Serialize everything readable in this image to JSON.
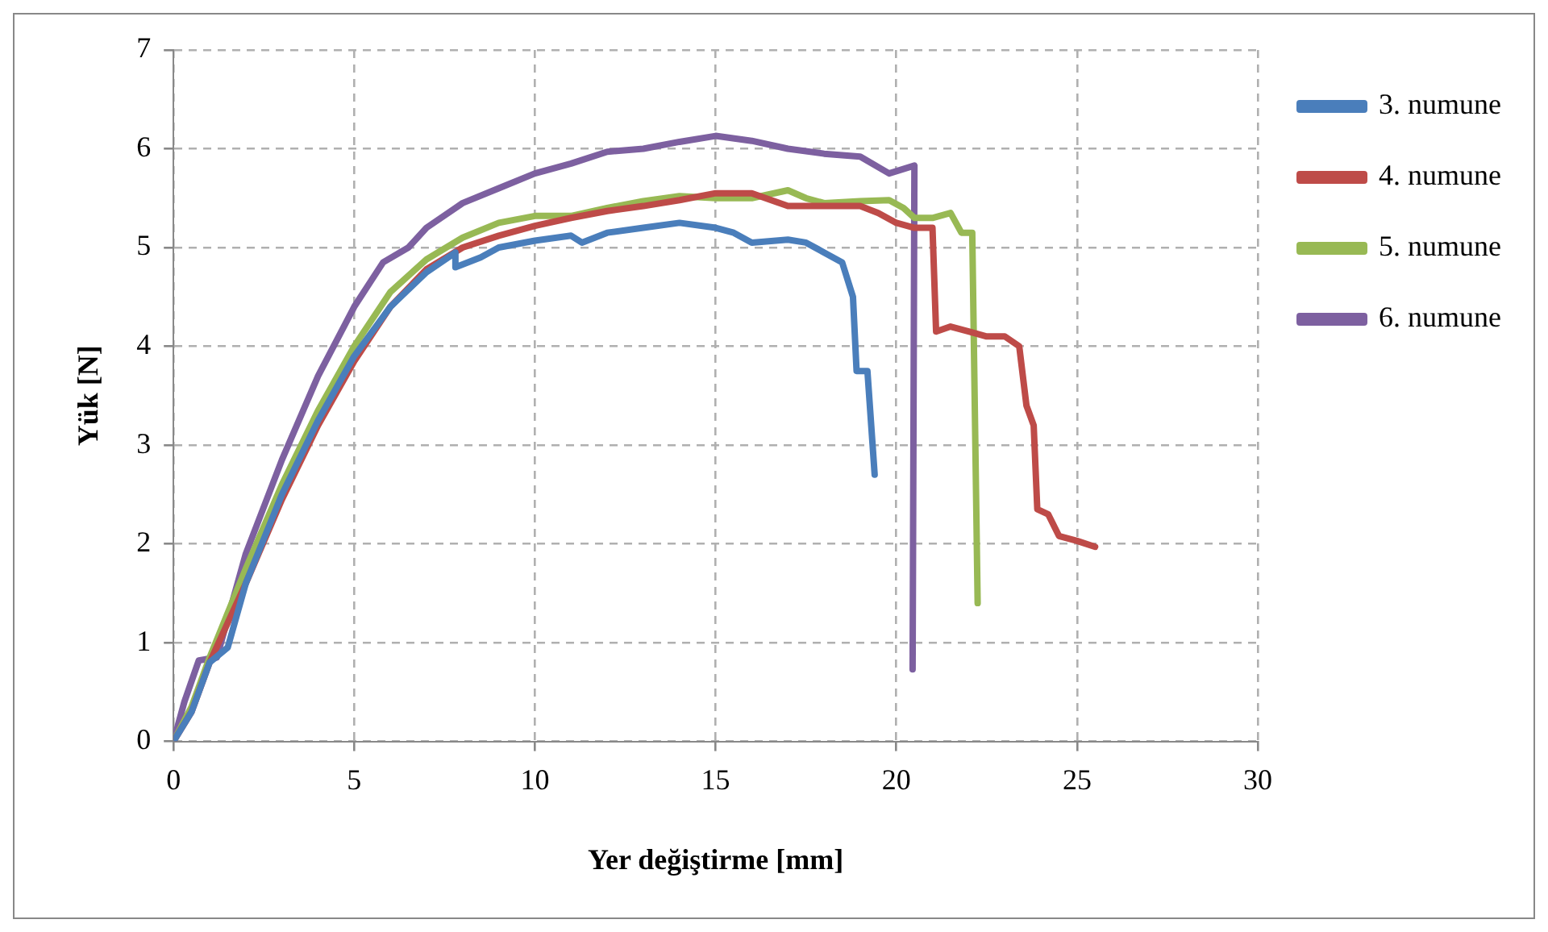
{
  "chart_data": {
    "type": "line",
    "xlabel": "Yer değiştirme [mm]",
    "ylabel": "Yük [N]",
    "xlim": [
      0,
      30
    ],
    "xticks": [
      0,
      5,
      10,
      15,
      20,
      25,
      30
    ],
    "ylim": [
      0,
      7
    ],
    "yticks": [
      0,
      1,
      2,
      3,
      4,
      5,
      6,
      7
    ],
    "grid": true,
    "legend": "right",
    "marker": "none",
    "line_style": "solid",
    "series": [
      {
        "name": "3. numune",
        "color": "#4a7ebb",
        "x": [
          0,
          0.5,
          1,
          1.5,
          2,
          3,
          4,
          5,
          6,
          7,
          7.8,
          7.8,
          8.5,
          9,
          10,
          11,
          11.3,
          12,
          13,
          14,
          15,
          15.5,
          16,
          17,
          17.5,
          18,
          18.5,
          18.8,
          18.9,
          19.2,
          19.4
        ],
        "values": [
          0,
          0.3,
          0.8,
          0.95,
          1.6,
          2.5,
          3.25,
          3.9,
          4.4,
          4.75,
          4.95,
          4.8,
          4.9,
          5.0,
          5.07,
          5.12,
          5.05,
          5.15,
          5.2,
          5.25,
          5.2,
          5.15,
          5.05,
          5.08,
          5.05,
          4.95,
          4.85,
          4.5,
          3.75,
          3.75,
          2.7
        ]
      },
      {
        "name": "4. numune",
        "color": "#be4b48",
        "x": [
          0,
          0.5,
          1,
          2,
          3,
          4,
          5,
          6,
          7,
          8,
          9,
          10,
          11,
          12,
          13,
          14,
          15,
          16,
          17,
          18,
          19,
          19.5,
          20,
          20.5,
          21,
          21.1,
          21.5,
          22,
          22.5,
          23,
          23.4,
          23.6,
          23.8,
          23.9,
          24.2,
          24.5,
          25,
          25.5
        ],
        "values": [
          0,
          0.3,
          0.8,
          1.6,
          2.45,
          3.2,
          3.85,
          4.4,
          4.78,
          5.0,
          5.12,
          5.22,
          5.3,
          5.37,
          5.42,
          5.48,
          5.55,
          5.55,
          5.42,
          5.42,
          5.42,
          5.35,
          5.25,
          5.2,
          5.2,
          4.15,
          4.2,
          4.15,
          4.1,
          4.1,
          4.0,
          3.4,
          3.2,
          2.35,
          2.3,
          2.08,
          2.03,
          1.97
        ]
      },
      {
        "name": "5. numune",
        "color": "#98b954",
        "x": [
          0,
          0.5,
          1,
          2,
          3,
          4,
          5,
          6,
          7,
          8,
          9,
          10,
          11,
          12,
          13,
          14,
          15,
          16,
          17,
          17.5,
          18,
          19,
          19.8,
          20.2,
          20.5,
          21,
          21.5,
          21.8,
          22.1,
          22.25
        ],
        "values": [
          0,
          0.35,
          0.85,
          1.75,
          2.6,
          3.35,
          4.0,
          4.55,
          4.88,
          5.1,
          5.25,
          5.32,
          5.32,
          5.4,
          5.47,
          5.52,
          5.5,
          5.5,
          5.58,
          5.5,
          5.45,
          5.47,
          5.48,
          5.4,
          5.3,
          5.3,
          5.35,
          5.15,
          5.15,
          1.4
        ]
      },
      {
        "name": "6. numune",
        "color": "#7d60a0",
        "x": [
          0,
          0.3,
          0.7,
          1.2,
          2,
          3,
          4,
          5,
          5.8,
          6.5,
          7,
          8,
          9,
          10,
          11,
          12,
          13,
          14,
          15,
          16,
          17,
          18,
          19,
          19.8,
          20.5,
          20.45
        ],
        "values": [
          0,
          0.4,
          0.82,
          0.85,
          1.9,
          2.85,
          3.7,
          4.4,
          4.85,
          5.0,
          5.2,
          5.45,
          5.6,
          5.75,
          5.85,
          5.97,
          6.0,
          6.07,
          6.13,
          6.08,
          6.0,
          5.95,
          5.92,
          5.75,
          5.83,
          0.73
        ]
      }
    ]
  }
}
